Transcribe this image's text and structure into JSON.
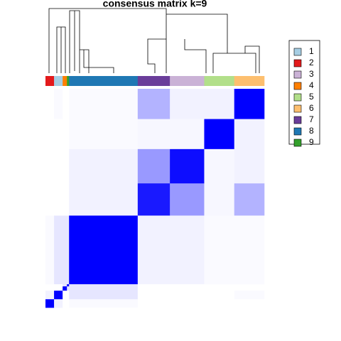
{
  "chart_data": {
    "type": "heatmap",
    "title": "consensus matrix k=9",
    "series": [
      {
        "name": "1",
        "color": "#a6cee3"
      },
      {
        "name": "2",
        "color": "#e31a1c"
      },
      {
        "name": "3",
        "color": "#cab2d6"
      },
      {
        "name": "4",
        "color": "#ff7f00"
      },
      {
        "name": "5",
        "color": "#b2df8a"
      },
      {
        "name": "6",
        "color": "#fdbf6f"
      },
      {
        "name": "7",
        "color": "#6a3d9a"
      },
      {
        "name": "8",
        "color": "#1f78b4"
      },
      {
        "name": "9",
        "color": "#33a02c"
      }
    ],
    "order": [
      1,
      0,
      3,
      8,
      7,
      6,
      2,
      4,
      5
    ],
    "sizes": [
      4,
      4,
      2,
      1,
      32,
      15,
      16,
      14,
      14
    ],
    "values": [
      [
        1,
        0.05,
        0,
        0,
        0.02,
        0,
        0,
        0,
        0
      ],
      [
        0.05,
        1,
        0,
        0,
        0.1,
        0,
        0,
        0,
        0.02
      ],
      [
        0,
        0,
        1,
        0.1,
        0.1,
        0,
        0,
        0,
        0
      ],
      [
        0,
        0,
        0.1,
        1,
        0.1,
        0,
        0,
        0,
        0
      ],
      [
        0.02,
        0.1,
        0.1,
        0.1,
        1,
        0.05,
        0.05,
        0.02,
        0.02
      ],
      [
        0,
        0,
        0,
        0,
        0.05,
        0.9,
        0.4,
        0.03,
        0.3
      ],
      [
        0,
        0,
        0,
        0,
        0.05,
        0.4,
        0.95,
        0.03,
        0.05
      ],
      [
        0,
        0,
        0,
        0,
        0.02,
        0.03,
        0.03,
        1,
        0.05
      ],
      [
        0,
        0.02,
        0,
        0,
        0.02,
        0.3,
        0.05,
        0.05,
        1
      ]
    ]
  }
}
